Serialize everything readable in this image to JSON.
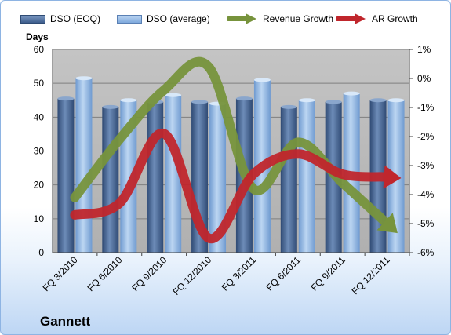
{
  "chart_data": {
    "type": "bar",
    "title": "",
    "company": "Gannett",
    "categories": [
      "FQ 3/2010",
      "FQ 6/2010",
      "FQ 9/2010",
      "FQ 12/2010",
      "FQ 3/2011",
      "FQ 6/2011",
      "FQ 9/2011",
      "FQ 12/2011"
    ],
    "y_left": {
      "label": "Days",
      "min": 0,
      "max": 60,
      "ticks": [
        "0",
        "10",
        "20",
        "30",
        "40",
        "50",
        "60"
      ]
    },
    "y_right": {
      "label": "",
      "min": -6,
      "max": 1,
      "ticks": [
        "-6%",
        "-5%",
        "-4%",
        "-3%",
        "-2%",
        "-1%",
        "0%",
        "1%"
      ]
    },
    "series": [
      {
        "name": "DSO (EOQ)",
        "kind": "bar",
        "axis": "left",
        "color": "#3d5d8c",
        "values": [
          45.5,
          43,
          44.5,
          44.5,
          45.5,
          43,
          44.5,
          45
        ]
      },
      {
        "name": "DSO (average)",
        "kind": "bar",
        "axis": "left",
        "color": "#8fb4e3",
        "values": [
          51.5,
          45,
          46.5,
          44,
          51,
          45,
          47,
          45
        ]
      },
      {
        "name": "Revenue Growth",
        "kind": "arrow-line",
        "axis": "right",
        "color": "#77933c",
        "values": [
          -4.1,
          -2.1,
          -0.4,
          0.4,
          -3.8,
          -2.2,
          -3.6,
          -5.0
        ]
      },
      {
        "name": "AR Growth",
        "kind": "arrow-line",
        "axis": "right",
        "color": "#c0262c",
        "values": [
          -4.7,
          -4.3,
          -1.9,
          -5.5,
          -3.3,
          -2.6,
          -3.3,
          -3.4
        ]
      }
    ],
    "grid": true,
    "legend_position": "top"
  }
}
